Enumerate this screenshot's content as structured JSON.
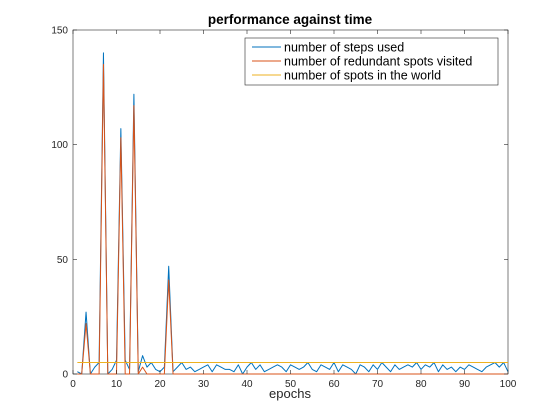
{
  "chart_data": {
    "type": "line",
    "title": "performance against time",
    "xlabel": "epochs",
    "ylabel": "",
    "xlim": [
      0,
      100
    ],
    "ylim": [
      0,
      150
    ],
    "xticks": [
      0,
      10,
      20,
      30,
      40,
      50,
      60,
      70,
      80,
      90,
      100
    ],
    "yticks": [
      0,
      50,
      100,
      150
    ],
    "grid": false,
    "legend_position": "top-right",
    "x": [
      1,
      2,
      3,
      4,
      5,
      6,
      7,
      8,
      9,
      10,
      11,
      12,
      13,
      14,
      15,
      16,
      17,
      18,
      19,
      20,
      21,
      22,
      23,
      24,
      25,
      26,
      27,
      28,
      29,
      30,
      31,
      32,
      33,
      34,
      35,
      36,
      37,
      38,
      39,
      40,
      41,
      42,
      43,
      44,
      45,
      46,
      47,
      48,
      49,
      50,
      51,
      52,
      53,
      54,
      55,
      56,
      57,
      58,
      59,
      60,
      61,
      62,
      63,
      64,
      65,
      66,
      67,
      68,
      69,
      70,
      71,
      72,
      73,
      74,
      75,
      76,
      77,
      78,
      79,
      80,
      81,
      82,
      83,
      84,
      85,
      86,
      87,
      88,
      89,
      90,
      91,
      92,
      93,
      94,
      95,
      96,
      97,
      98,
      99,
      100
    ],
    "series": [
      {
        "name": "number of steps used",
        "color": "#0072BD",
        "values": [
          1,
          0,
          27,
          0,
          3,
          5,
          140,
          0,
          2,
          6,
          107,
          6,
          2,
          122,
          1,
          8,
          3,
          5,
          2,
          1,
          3,
          47,
          1,
          3,
          5,
          2,
          3,
          1,
          2,
          3,
          4,
          1,
          4,
          3,
          2,
          2,
          1,
          4,
          0,
          3,
          5,
          2,
          4,
          1,
          2,
          3,
          4,
          3,
          1,
          4,
          3,
          2,
          3,
          5,
          2,
          1,
          4,
          3,
          2,
          5,
          1,
          4,
          3,
          2,
          0,
          4,
          3,
          1,
          4,
          2,
          5,
          3,
          1,
          4,
          2,
          3,
          4,
          3,
          5,
          2,
          4,
          3,
          5,
          1,
          4,
          2,
          3,
          1,
          3,
          2,
          4,
          3,
          2,
          1,
          3,
          4,
          5,
          3,
          5,
          1
        ]
      },
      {
        "name": "number of redundant spots visited",
        "color": "#D95319",
        "values": [
          0,
          0,
          22,
          0,
          0,
          0,
          135,
          0,
          0,
          0,
          103,
          0,
          0,
          117,
          0,
          3,
          0,
          0,
          0,
          0,
          0,
          41,
          0,
          0,
          0,
          0,
          0,
          0,
          0,
          0,
          0,
          0,
          0,
          0,
          0,
          0,
          0,
          0,
          0,
          0,
          0,
          0,
          0,
          0,
          0,
          0,
          0,
          0,
          0,
          0,
          0,
          0,
          0,
          0,
          0,
          0,
          0,
          0,
          0,
          0,
          0,
          0,
          0,
          0,
          0,
          0,
          0,
          0,
          0,
          0,
          0,
          0,
          0,
          0,
          0,
          0,
          0,
          0,
          0,
          0,
          0,
          0,
          0,
          0,
          0,
          0,
          0,
          0,
          0,
          0,
          0,
          0,
          0,
          0,
          0,
          0,
          0,
          0,
          0,
          0
        ]
      },
      {
        "name": "number of spots in the world",
        "color": "#EDB120",
        "values": [
          5,
          5,
          5,
          5,
          5,
          5,
          5,
          5,
          5,
          5,
          5,
          5,
          5,
          5,
          5,
          5,
          5,
          5,
          5,
          5,
          5,
          5,
          5,
          5,
          5,
          5,
          5,
          5,
          5,
          5,
          5,
          5,
          5,
          5,
          5,
          5,
          5,
          5,
          5,
          5,
          5,
          5,
          5,
          5,
          5,
          5,
          5,
          5,
          5,
          5,
          5,
          5,
          5,
          5,
          5,
          5,
          5,
          5,
          5,
          5,
          5,
          5,
          5,
          5,
          5,
          5,
          5,
          5,
          5,
          5,
          5,
          5,
          5,
          5,
          5,
          5,
          5,
          5,
          5,
          5,
          5,
          5,
          5,
          5,
          5,
          5,
          5,
          5,
          5,
          5,
          5,
          5,
          5,
          5,
          5,
          5,
          5,
          5,
          5,
          5
        ]
      }
    ]
  }
}
